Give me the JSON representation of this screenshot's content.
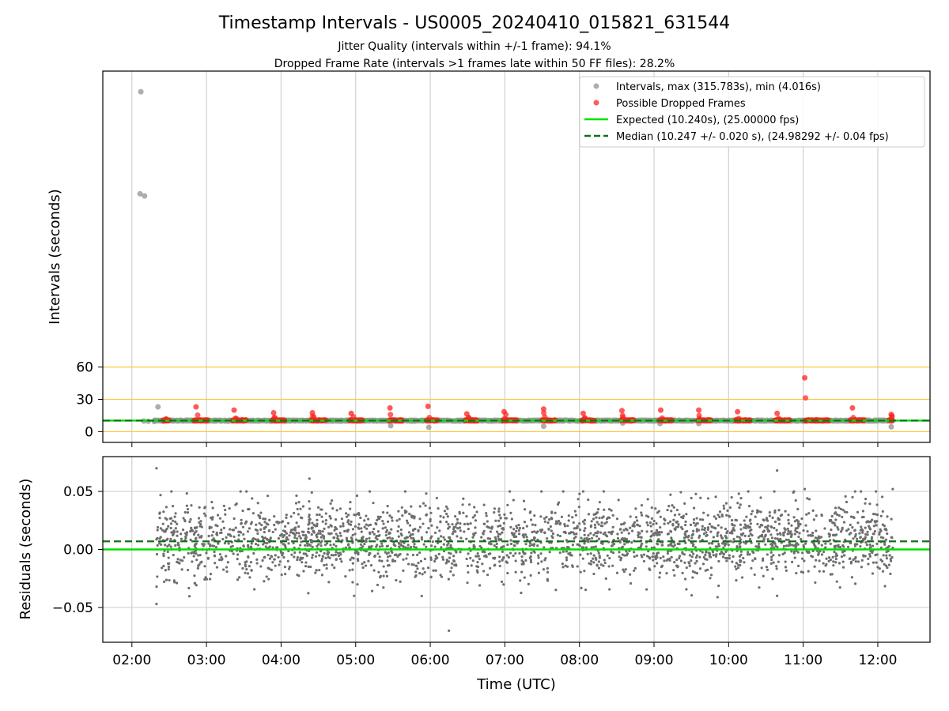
{
  "chart_data": {
    "type": "scatter",
    "title": "Timestamp Intervals - US0005_20240410_015821_631544",
    "subtitle_lines": [
      "Jitter Quality (intervals within +/-1 frame): 94.1%",
      "Dropped Frame Rate (intervals >1 frames late within 50 FF files): 28.2%"
    ],
    "xlabel": "Time (UTC)",
    "x_ticks": [
      "02:00",
      "03:00",
      "04:00",
      "05:00",
      "06:00",
      "07:00",
      "08:00",
      "09:00",
      "10:00",
      "11:00",
      "12:00"
    ],
    "x_tick_hours": [
      2,
      3,
      4,
      5,
      6,
      7,
      8,
      9,
      10,
      11,
      12
    ],
    "xlim_hours": [
      1.61,
      12.7
    ],
    "grid": true,
    "panels": [
      {
        "name": "intervals",
        "ylabel": "Intervals (seconds)",
        "ylim": [
          -10,
          335
        ],
        "y_ticks": [
          0,
          30,
          60
        ],
        "reference_lines": [
          {
            "y": 0,
            "color": "#ffc845"
          },
          {
            "y": 30,
            "color": "#ffc845"
          },
          {
            "y": 60,
            "color": "#ffc845"
          }
        ],
        "expected": 10.24,
        "median": 10.247,
        "legend_position": "top-right",
        "legend": [
          {
            "label": "Intervals, max (315.783s), min (4.016s)",
            "kind": "dot",
            "color": "#999999"
          },
          {
            "label": "Possible Dropped Frames",
            "kind": "dot",
            "color": "#ff3333"
          },
          {
            "label": "Expected (10.240s), (25.00000 fps)",
            "kind": "line",
            "color": "#00e000"
          },
          {
            "label": "Median (10.247 +/- 0.020 s), (24.98292 +/- 0.04 fps)",
            "kind": "dash",
            "color": "#127012"
          }
        ],
        "intervals_outliers": [
          [
            2.12,
            315.8
          ],
          [
            2.11,
            221.0
          ],
          [
            2.17,
            219.0
          ],
          [
            2.35,
            23.0
          ],
          [
            2.16,
            9.8
          ],
          [
            2.22,
            9.6
          ],
          [
            2.3,
            9.4
          ],
          [
            5.47,
            5.5
          ],
          [
            5.98,
            4.0
          ],
          [
            7.52,
            5.0
          ],
          [
            8.58,
            8.0
          ],
          [
            9.08,
            7.5
          ],
          [
            9.6,
            7.5
          ],
          [
            12.18,
            4.5
          ]
        ],
        "dropped_clusters": [
          {
            "start": 2.42,
            "end": 2.5,
            "peak_time": 2.43,
            "peak": 10.5
          },
          {
            "start": 2.83,
            "end": 3.02,
            "peak_time": 2.86,
            "peak": 23
          },
          {
            "start": 3.35,
            "end": 3.53,
            "peak_time": 3.37,
            "peak": 20
          },
          {
            "start": 3.88,
            "end": 4.05,
            "peak_time": 3.9,
            "peak": 17.5
          },
          {
            "start": 4.4,
            "end": 4.6,
            "peak_time": 4.42,
            "peak": 17.5
          },
          {
            "start": 4.92,
            "end": 5.1,
            "peak_time": 4.94,
            "peak": 17
          },
          {
            "start": 5.45,
            "end": 5.63,
            "peak_time": 5.46,
            "peak": 22
          },
          {
            "start": 5.95,
            "end": 6.1,
            "peak_time": 5.97,
            "peak": 23.5
          },
          {
            "start": 6.47,
            "end": 6.63,
            "peak_time": 6.49,
            "peak": 16.5
          },
          {
            "start": 6.97,
            "end": 7.16,
            "peak_time": 6.99,
            "peak": 18.5
          },
          {
            "start": 7.5,
            "end": 7.68,
            "peak_time": 7.52,
            "peak": 21
          },
          {
            "start": 8.03,
            "end": 8.2,
            "peak_time": 8.05,
            "peak": 17
          },
          {
            "start": 8.56,
            "end": 8.73,
            "peak_time": 8.57,
            "peak": 19.5
          },
          {
            "start": 9.07,
            "end": 9.25,
            "peak_time": 9.09,
            "peak": 20
          },
          {
            "start": 9.59,
            "end": 9.76,
            "peak_time": 9.6,
            "peak": 20
          },
          {
            "start": 10.09,
            "end": 10.3,
            "peak_time": 10.12,
            "peak": 18.5
          },
          {
            "start": 10.62,
            "end": 10.82,
            "peak_time": 10.65,
            "peak": 17
          },
          {
            "start": 11.02,
            "end": 11.35,
            "peak_time": 11.02,
            "peak": 50
          },
          {
            "start": 11.63,
            "end": 11.82,
            "peak_time": 11.66,
            "peak": 22
          },
          {
            "start": 12.15,
            "end": 12.2,
            "peak_time": 12.18,
            "peak": 16
          }
        ]
      },
      {
        "name": "residuals",
        "ylabel": "Residuals (seconds)",
        "ylim": [
          -0.08,
          0.08
        ],
        "y_ticks": [
          0.05,
          0.0,
          -0.05
        ],
        "y_tick_labels": [
          "0.05",
          "0.00",
          "−0.05"
        ],
        "expected": 0.0,
        "median": 0.007,
        "x_range_hours": [
          2.33,
          12.2
        ],
        "point_count": 2600,
        "mean": 0.008,
        "sd": 0.016,
        "outliers": [
          [
            2.33,
            0.07
          ],
          [
            2.33,
            -0.047
          ],
          [
            4.38,
            0.061
          ],
          [
            4.98,
            -0.04
          ],
          [
            6.25,
            -0.07
          ],
          [
            10.65,
            0.068
          ],
          [
            10.65,
            -0.04
          ],
          [
            11.02,
            0.052
          ],
          [
            12.2,
            0.052
          ]
        ]
      }
    ]
  }
}
